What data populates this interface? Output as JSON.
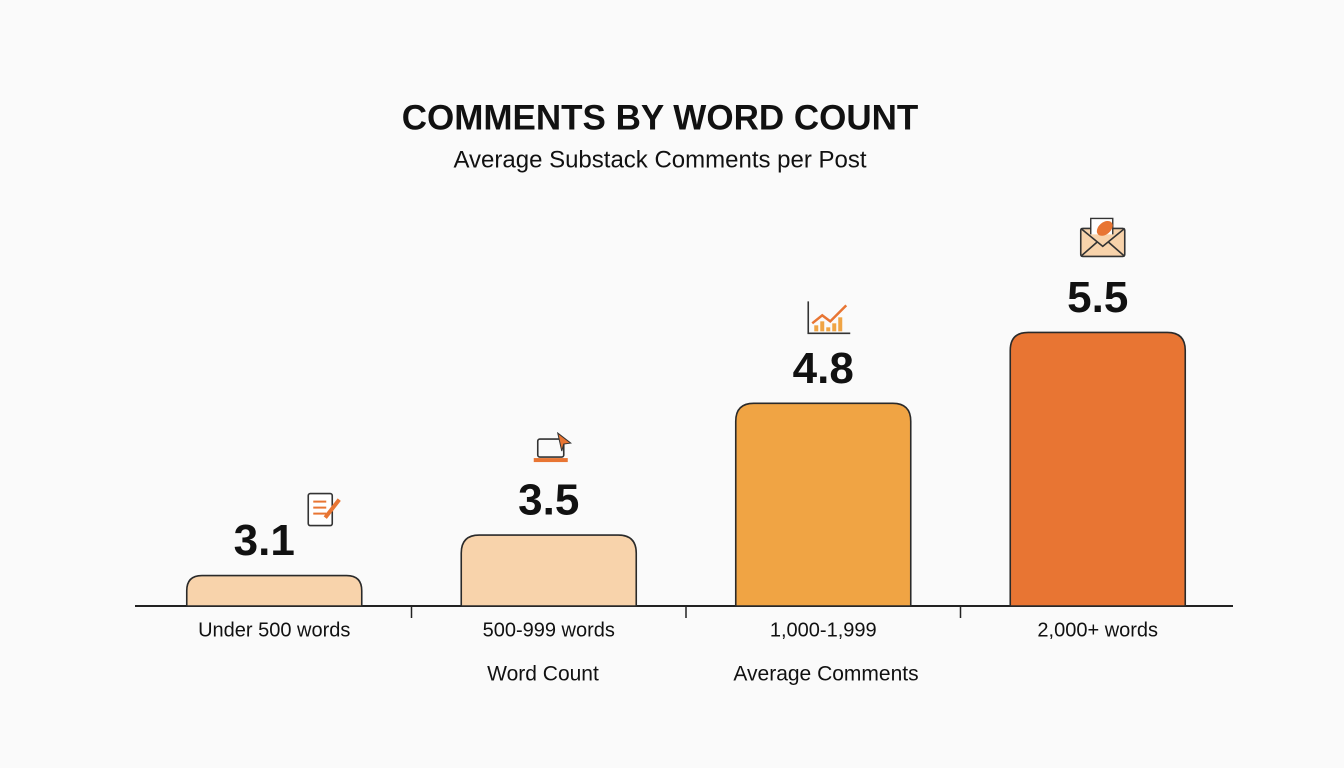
{
  "chart_data": {
    "type": "bar",
    "title": "COMMENTS BY WORD COUNT",
    "subtitle": "Average Substack Comments per Post",
    "x_label": "Word Count",
    "y_label": "Average Comments",
    "categories": [
      "Under 500 words",
      "500-999 words",
      "1,000-1,999",
      "2,000+ words"
    ],
    "values": [
      3.1,
      3.5,
      4.8,
      5.5
    ],
    "colors": [
      "#f8d3ab",
      "#f8d3ab",
      "#f0a444",
      "#e87533"
    ],
    "ylim": [
      2.8,
      5.8
    ]
  }
}
